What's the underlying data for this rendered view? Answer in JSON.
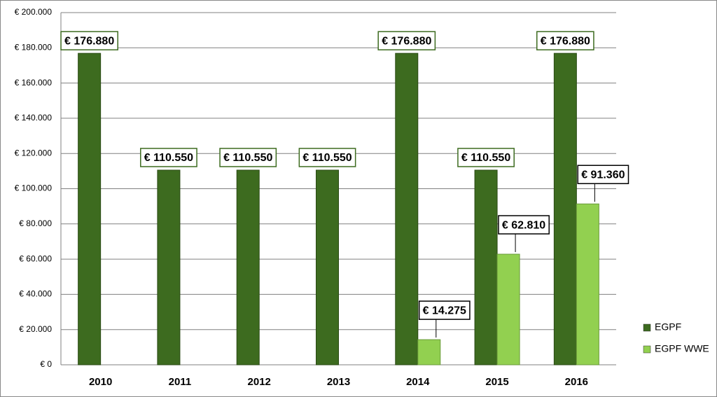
{
  "chart_data": {
    "type": "bar",
    "categories": [
      "2010",
      "2011",
      "2012",
      "2013",
      "2014",
      "2015",
      "2016"
    ],
    "series": [
      {
        "name": "EGPF",
        "color": "#3d6b1f",
        "values": [
          176880,
          110550,
          110550,
          110550,
          176880,
          110550,
          176880
        ],
        "value_labels": [
          "€ 176.880",
          "€ 110.550",
          "€ 110.550",
          "€ 110.550",
          "€ 176.880",
          "€ 110.550",
          "€ 176.880"
        ]
      },
      {
        "name": "EGPF WWE",
        "color": "#92d050",
        "values": [
          null,
          null,
          null,
          null,
          14275,
          62810,
          91360
        ],
        "value_labels": [
          null,
          null,
          null,
          null,
          "€ 14.275",
          "€ 62.810",
          "€ 91.360"
        ]
      }
    ],
    "ylim": [
      0,
      200000
    ],
    "yticks": [
      {
        "value": 0,
        "label": "€ 0"
      },
      {
        "value": 20000,
        "label": "€ 20.000"
      },
      {
        "value": 40000,
        "label": "€ 40.000"
      },
      {
        "value": 60000,
        "label": "€ 60.000"
      },
      {
        "value": 80000,
        "label": "€ 80.000"
      },
      {
        "value": 100000,
        "label": "€ 100.000"
      },
      {
        "value": 120000,
        "label": "€ 120.000"
      },
      {
        "value": 140000,
        "label": "€ 140.000"
      },
      {
        "value": 160000,
        "label": "€ 160.000"
      },
      {
        "value": 180000,
        "label": "€ 180.000"
      },
      {
        "value": 200000,
        "label": "€ 200.000"
      }
    ],
    "grid": true,
    "legend": "right"
  }
}
